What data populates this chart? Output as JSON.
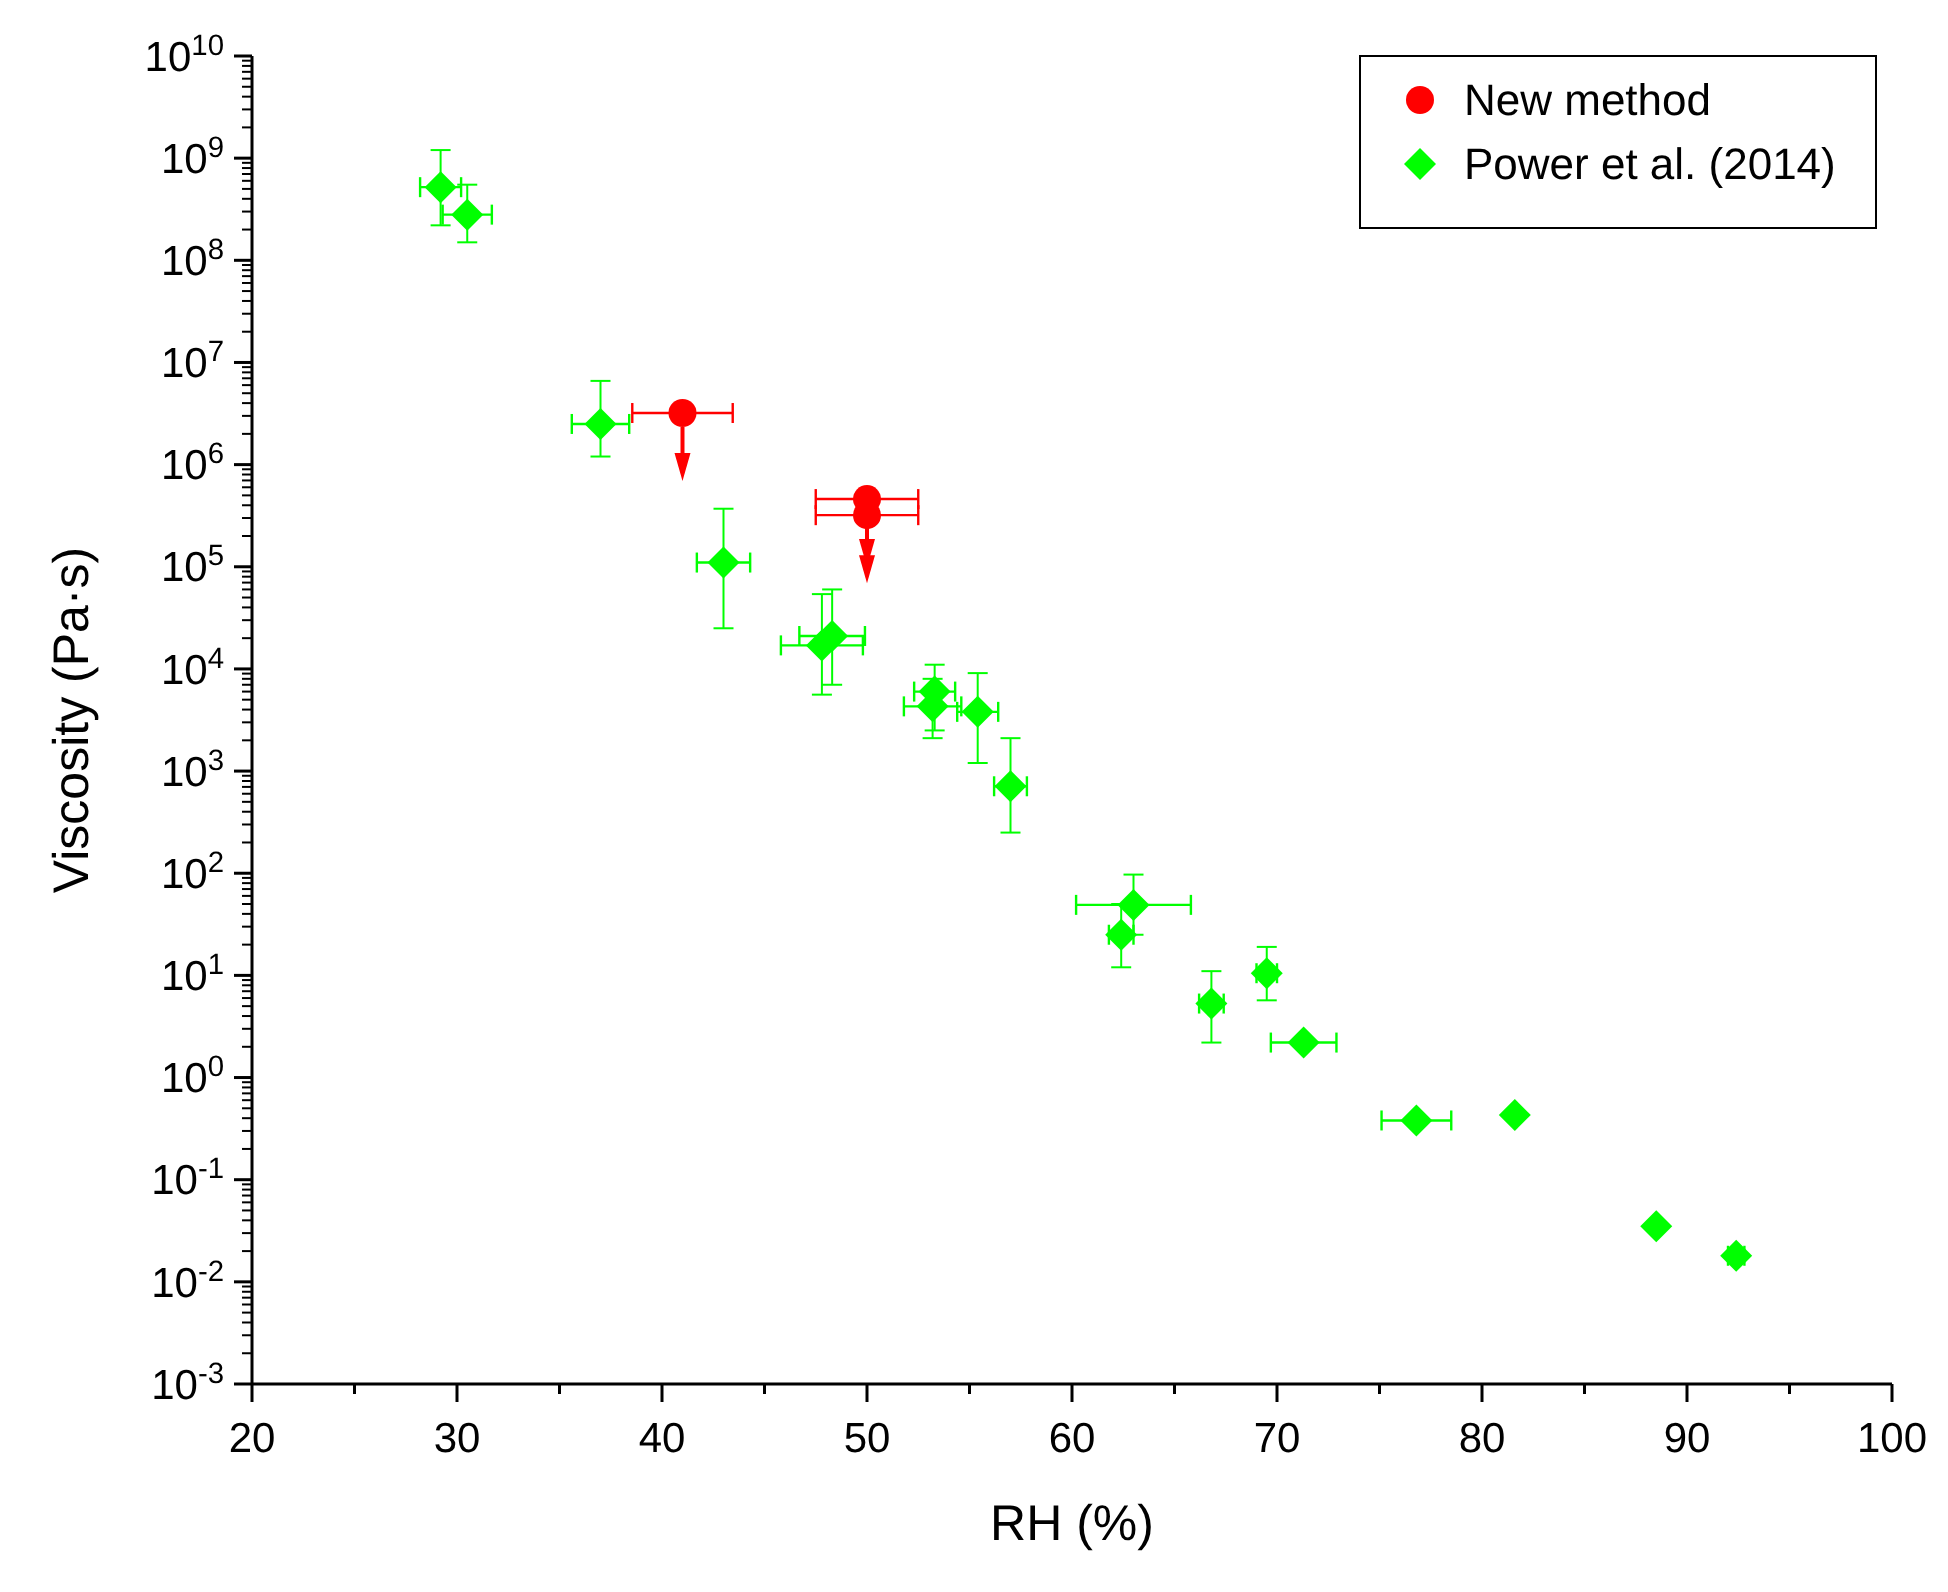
{
  "chart_data": {
    "type": "scatter",
    "xlabel": "RH (%)",
    "ylabel": "Viscosity (Pa·s)",
    "log": "y",
    "xlim": [
      20,
      100
    ],
    "xticks": [
      20,
      30,
      40,
      50,
      60,
      70,
      80,
      90,
      100
    ],
    "ylim": [
      0.001,
      10000000000
    ],
    "yticks": [
      {
        "value": 0.001,
        "label": "10$^{-3}$"
      },
      {
        "value": 0.01,
        "label": "10$^{-2}$"
      },
      {
        "value": 0.1,
        "label": "10$^{-1}$"
      },
      {
        "value": 1,
        "label": "10$^{0}$"
      },
      {
        "value": 10,
        "label": "10$^{1}$"
      },
      {
        "value": 100,
        "label": "10$^{2}$"
      },
      {
        "value": 1000,
        "label": "10$^{3}$"
      },
      {
        "value": 10000,
        "label": "10$^{4}$"
      },
      {
        "value": 100000,
        "label": "10$^{5}$"
      },
      {
        "value": 1000000,
        "label": "10$^{6}$"
      },
      {
        "value": 10000000,
        "label": "10$^{7}$"
      },
      {
        "value": 100000000,
        "label": "10$^{8}$"
      },
      {
        "value": 1000000000,
        "label": "10$^{9}$"
      },
      {
        "value": 10000000000,
        "label": "10$^{10}$"
      }
    ],
    "grid": false,
    "legend": "top right",
    "series": [
      {
        "name": "New method",
        "color": "#ff0000",
        "marker": "circle",
        "x": [
          41.0,
          50.0,
          50.0
        ],
        "values": [
          3200000,
          460000,
          320000
        ],
        "xerrors": [
          2.45,
          2.5,
          2.5
        ],
        "errors": [
          null,
          null,
          null
        ]
      },
      {
        "name": "Power et al. (2014)",
        "color": "#00ff00",
        "marker": "diamond",
        "x": [
          29.2,
          30.5,
          37.0,
          43.0,
          47.8,
          48.3,
          53.3,
          53.2,
          55.4,
          57.0,
          63.0,
          62.4,
          66.8,
          69.5,
          71.3,
          76.8,
          81.6,
          88.5,
          92.4
        ],
        "values": [
          520000000,
          280000000,
          2500000,
          110000,
          17000,
          21000,
          6000,
          4300,
          3800,
          710,
          49,
          25,
          5.3,
          10.5,
          2.2,
          0.38,
          0.43,
          0.035,
          0.018
        ],
        "xerrors": [
          1,
          1.2,
          1.4,
          1.3,
          2,
          1.6,
          1,
          1.4,
          1,
          0.8,
          2.8,
          0.6,
          0.6,
          0.5,
          1.6,
          1.7,
          null,
          null,
          0.4
        ],
        "errors": [
          [
            220000000,
            1200000000
          ],
          [
            150000000,
            550000000
          ],
          [
            1200000,
            6600000
          ],
          [
            25000,
            370000
          ],
          [
            5600,
            54000
          ],
          [
            7000,
            60000
          ],
          [
            2500,
            11000
          ],
          [
            2100,
            8000
          ],
          [
            1200,
            9100
          ],
          [
            250,
            2100
          ],
          [
            25,
            97
          ],
          [
            12,
            50
          ],
          [
            2.2,
            11
          ],
          [
            5.7,
            19
          ],
          null,
          null,
          null,
          null,
          null
        ]
      }
    ]
  }
}
